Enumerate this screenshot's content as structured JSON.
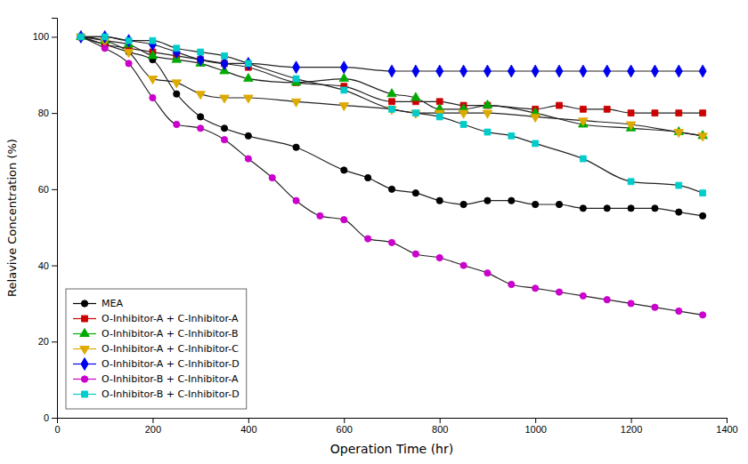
{
  "chart_data": {
    "type": "line",
    "xlabel": "Operation Time (hr)",
    "ylabel": "Relavive Concentration (%)",
    "xlim": [
      0,
      1400
    ],
    "ylim": [
      0,
      105
    ],
    "xticks": [
      0,
      200,
      400,
      600,
      800,
      1000,
      1200,
      1400
    ],
    "yticks": [
      0,
      20,
      40,
      60,
      80,
      100
    ],
    "grid": false,
    "legend": "lower left",
    "series": [
      {
        "name": "MEA",
        "color": "black",
        "marker": "circle",
        "x": [
          50,
          100,
          150,
          200,
          250,
          300,
          350,
          400,
          500,
          600,
          650,
          700,
          750,
          800,
          850,
          900,
          950,
          1000,
          1050,
          1100,
          1150,
          1200,
          1250,
          1300,
          1350
        ],
        "values": [
          100,
          98,
          96,
          94,
          85,
          79,
          76,
          74,
          71,
          65,
          63,
          60,
          59,
          57,
          56,
          57,
          57,
          56,
          56,
          55,
          55,
          55,
          55,
          54,
          53
        ]
      },
      {
        "name": "O-Inhibitor-A + C-Inhibitor-A",
        "color": "#cc0000",
        "marker": "square",
        "x": [
          50,
          100,
          150,
          200,
          250,
          300,
          350,
          400,
          500,
          600,
          700,
          750,
          800,
          850,
          900,
          1000,
          1050,
          1100,
          1150,
          1200,
          1250,
          1300,
          1350
        ],
        "values": [
          100,
          98,
          97,
          96,
          95,
          94,
          93,
          92,
          88,
          87,
          83,
          83,
          83,
          82,
          82,
          81,
          82,
          81,
          81,
          80,
          80,
          80,
          80
        ]
      },
      {
        "name": "O-Inhibitor-A + C-Inhibitor-B",
        "color": "#00aa00",
        "marker": "triangle-up",
        "x": [
          50,
          100,
          150,
          200,
          250,
          300,
          350,
          400,
          500,
          600,
          700,
          750,
          800,
          850,
          900,
          1000,
          1100,
          1200,
          1300,
          1350
        ],
        "values": [
          100,
          99,
          98,
          95,
          94,
          93,
          91,
          89,
          88,
          89,
          85,
          84,
          81,
          81,
          82,
          80,
          77,
          76,
          75,
          74
        ]
      },
      {
        "name": "O-Inhibitor-A + C-Inhibitor-C",
        "color": "#ddaa00",
        "marker": "triangle-down",
        "x": [
          50,
          100,
          150,
          200,
          250,
          300,
          350,
          400,
          500,
          600,
          700,
          750,
          800,
          850,
          900,
          1000,
          1100,
          1200,
          1300,
          1350
        ],
        "values": [
          100,
          99,
          96,
          89,
          88,
          85,
          84,
          84,
          83,
          82,
          81,
          80,
          80,
          80,
          80,
          79,
          78,
          77,
          75,
          74
        ]
      },
      {
        "name": "O-Inhibitor-A + C-Inhibitor-D",
        "color": "#0000ee",
        "marker": "diamond",
        "x": [
          50,
          100,
          150,
          200,
          250,
          300,
          350,
          400,
          500,
          600,
          700,
          750,
          800,
          850,
          900,
          950,
          1000,
          1050,
          1100,
          1150,
          1200,
          1250,
          1300,
          1350
        ],
        "values": [
          100,
          100,
          99,
          98,
          96,
          94,
          93,
          93,
          92,
          92,
          91,
          91,
          91,
          91,
          91,
          91,
          91,
          91,
          91,
          91,
          91,
          91,
          91,
          91
        ]
      },
      {
        "name": "O-Inhibitor-B + C-Inhibitor-A",
        "color": "#cc00cc",
        "marker": "circle",
        "x": [
          50,
          100,
          150,
          200,
          250,
          300,
          350,
          400,
          450,
          500,
          550,
          600,
          650,
          700,
          750,
          800,
          850,
          900,
          950,
          1000,
          1050,
          1100,
          1150,
          1200,
          1250,
          1300,
          1350
        ],
        "values": [
          100,
          97,
          93,
          84,
          77,
          76,
          73,
          68,
          63,
          57,
          53,
          52,
          47,
          46,
          43,
          42,
          40,
          38,
          35,
          34,
          33,
          32,
          31,
          30,
          29,
          28,
          27
        ]
      },
      {
        "name": "O-Inhibitor-B + C-Inhibitor-D",
        "color": "#00cccc",
        "marker": "square",
        "x": [
          50,
          100,
          150,
          200,
          250,
          300,
          350,
          400,
          500,
          600,
          700,
          750,
          800,
          850,
          900,
          950,
          1000,
          1100,
          1200,
          1300,
          1350
        ],
        "values": [
          100,
          100,
          99,
          99,
          97,
          96,
          95,
          93,
          89,
          86,
          81,
          80,
          79,
          77,
          75,
          74,
          72,
          68,
          62,
          61,
          59
        ]
      }
    ]
  }
}
